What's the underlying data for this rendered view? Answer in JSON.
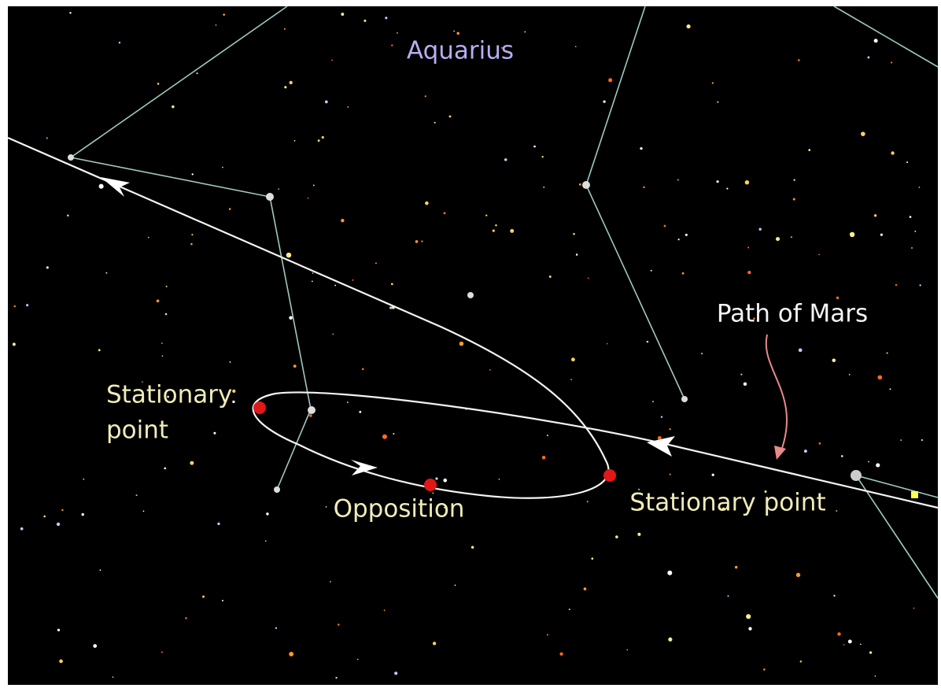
{
  "constellation": "Aquarius",
  "path_label": "Path of Mars",
  "stationary_left": [
    "Stationary",
    "point"
  ],
  "opposition": "Opposition",
  "stationary_right": "Stationary point"
}
